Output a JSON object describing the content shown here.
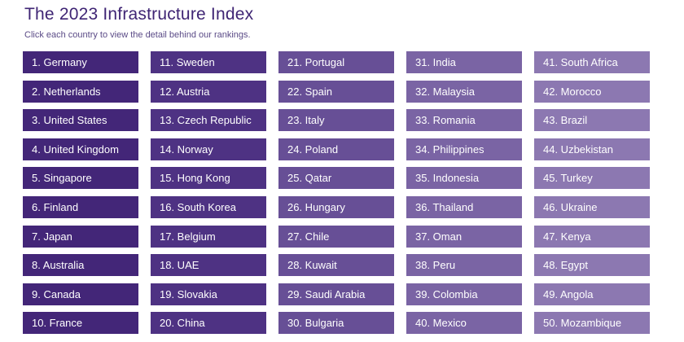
{
  "header": {
    "title": "The 2023 Infrastructure Index",
    "subtitle": "Click each country to view the detail behind our rankings."
  },
  "colors": {
    "title": "#3f2574",
    "column_shades": [
      "#432678",
      "#4e3283",
      "#674f96",
      "#7a64a4",
      "#8c78b1"
    ]
  },
  "rankings": [
    "1. Germany",
    "2. Netherlands",
    "3. United States",
    "4. United Kingdom",
    "5. Singapore",
    "6. Finland",
    "7. Japan",
    "8. Australia",
    "9. Canada",
    "10. France",
    "11. Sweden",
    "12. Austria",
    "13. Czech Republic",
    "14. Norway",
    "15. Hong Kong",
    "16. South Korea",
    "17. Belgium",
    "18. UAE",
    "19. Slovakia",
    "20. China",
    "21. Portugal",
    "22. Spain",
    "23. Italy",
    "24. Poland",
    "25. Qatar",
    "26. Hungary",
    "27. Chile",
    "28. Kuwait",
    "29. Saudi Arabia",
    "30. Bulgaria",
    "31. India",
    "32. Malaysia",
    "33. Romania",
    "34. Philippines",
    "35. Indonesia",
    "36. Thailand",
    "37. Oman",
    "38. Peru",
    "39. Colombia",
    "40. Mexico",
    "41. South Africa",
    "42. Morocco",
    "43. Brazil",
    "44. Uzbekistan",
    "45. Turkey",
    "46. Ukraine",
    "47. Kenya",
    "48. Egypt",
    "49. Angola",
    "50. Mozambique"
  ]
}
